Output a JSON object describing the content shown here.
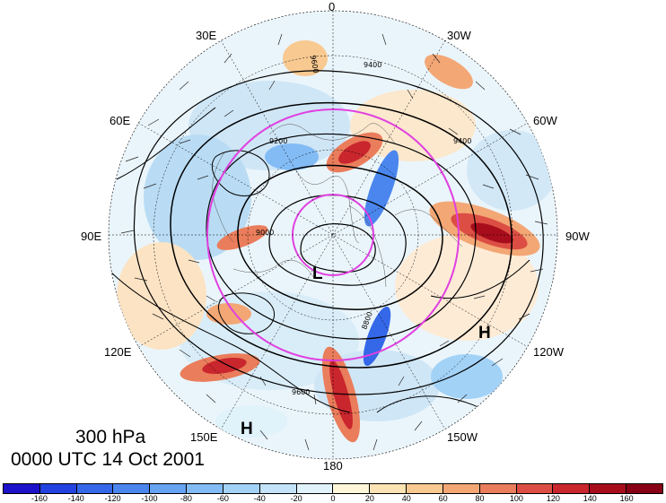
{
  "title": {
    "level": "300 hPa",
    "time": "0000 UTC 14 Oct 2001"
  },
  "longitude_labels": [
    "0",
    "30W",
    "60W",
    "90W",
    "120W",
    "150W",
    "180",
    "150E",
    "120E",
    "90E",
    "60E",
    "30E"
  ],
  "pressure_systems": [
    {
      "type": "H",
      "label": "H",
      "where": "bottom-left near 150E"
    },
    {
      "type": "H",
      "label": "H",
      "where": "right near 120W"
    },
    {
      "type": "L",
      "label": "L",
      "where": "near pole"
    }
  ],
  "contour_labels": [
    "9600",
    "9400",
    "9200",
    "9000",
    "8800",
    "9600",
    "9400"
  ],
  "colorbar": {
    "ticks": [
      "-160",
      "-140",
      "-120",
      "-100",
      "-80",
      "-60",
      "-40",
      "-20",
      "0",
      "20",
      "40",
      "60",
      "80",
      "100",
      "120",
      "140",
      "160"
    ],
    "colors": [
      "#1c12c9",
      "#2243e0",
      "#3568e8",
      "#4a86ee",
      "#66a3f2",
      "#83bcf5",
      "#a3d2f7",
      "#c3e3f8",
      "#e0f2fa",
      "#fdf6d8",
      "#fbe3b4",
      "#f8c991",
      "#f3a775",
      "#ea7d5b",
      "#dc4e43",
      "#c9262e",
      "#a80d1c",
      "#880015"
    ]
  },
  "legend_circles_color": "#e040e0",
  "contour_color": "#000000"
}
